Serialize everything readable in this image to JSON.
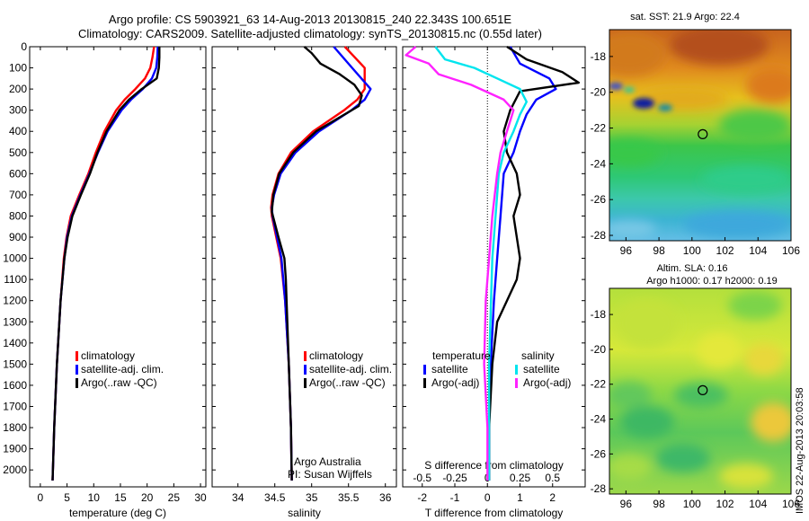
{
  "title_line1": "Argo profile: CS 5903921_63 14-Aug-2013 20130815_240 22.343S 100.651E",
  "title_line2": "Climatology: CARS2009. Satellite-adjusted climatology: synTS_20130815.nc (0.55d later)",
  "credit_org": "Argo Australia",
  "credit_pi": "PI: Susan Wijffels",
  "timestamp_label": "IMOS 22-Aug-2013 20:03:58",
  "colors": {
    "climatology": "#ff0000",
    "satellite": "#0000ff",
    "argo": "#000000",
    "salinity_satellite": "#00e5ee",
    "salinity_argo": "#ff22ff"
  },
  "chart_data": [
    {
      "type": "line",
      "xlabel": "temperature (deg C)",
      "ylabel": "",
      "xlim": [
        -2,
        31
      ],
      "ylim": [
        2080,
        0
      ],
      "xticks": [
        0,
        5,
        10,
        15,
        20,
        25,
        30
      ],
      "yticks": [
        0,
        100,
        200,
        300,
        400,
        500,
        600,
        700,
        800,
        900,
        1000,
        1100,
        1200,
        1300,
        1400,
        1500,
        1600,
        1700,
        1800,
        1900,
        2000
      ],
      "legend": [
        "climatology",
        "satellite-adj. clim.",
        "Argo(..raw -QC)"
      ],
      "legend_position": "lower-middle",
      "series": [
        {
          "name": "climatology",
          "color_key": "climatology",
          "depth": [
            0,
            50,
            100,
            150,
            200,
            250,
            300,
            400,
            500,
            600,
            700,
            800,
            900,
            1000,
            1200,
            1500,
            1800,
            2050
          ],
          "values": [
            21.3,
            21.0,
            20.6,
            19.6,
            17.8,
            15.8,
            14.2,
            12.0,
            10.4,
            9.0,
            7.3,
            5.7,
            4.9,
            4.4,
            3.8,
            3.1,
            2.6,
            2.3
          ]
        },
        {
          "name": "satellite-adj. clim.",
          "color_key": "satellite",
          "depth": [
            0,
            50,
            100,
            150,
            200,
            250,
            300,
            400,
            500,
            600,
            700,
            800,
            900,
            1000,
            1200,
            1500,
            1800,
            2050
          ],
          "values": [
            22.0,
            21.9,
            21.7,
            20.9,
            19.2,
            17.0,
            15.2,
            12.6,
            10.8,
            9.2,
            7.5,
            5.9,
            5.0,
            4.5,
            3.8,
            3.1,
            2.6,
            2.3
          ]
        },
        {
          "name": "Argo(..raw -QC)",
          "color_key": "argo",
          "depth": [
            0,
            50,
            100,
            150,
            200,
            250,
            300,
            400,
            500,
            600,
            700,
            800,
            900,
            1000,
            1200,
            1500,
            1800,
            2050
          ],
          "values": [
            22.3,
            22.3,
            22.2,
            21.8,
            19.0,
            16.6,
            14.8,
            12.4,
            10.7,
            9.3,
            7.6,
            6.0,
            5.1,
            4.5,
            3.8,
            3.1,
            2.6,
            2.3
          ]
        }
      ]
    },
    {
      "type": "line",
      "xlabel": "salinity",
      "ylabel": "",
      "xlim": [
        33.65,
        36.15
      ],
      "ylim": [
        2080,
        0
      ],
      "xticks": [
        34,
        34.5,
        35,
        35.5,
        36
      ],
      "legend": [
        "climatology",
        "satellite-adj. clim.",
        "Argo(..raw -QC)"
      ],
      "legend_position": "lower-middle",
      "series": [
        {
          "name": "climatology",
          "color_key": "climatology",
          "depth": [
            0,
            100,
            200,
            250,
            300,
            400,
            500,
            600,
            700,
            760,
            800,
            900,
            1000,
            1200,
            1500,
            1800,
            2050
          ],
          "values": [
            35.45,
            35.72,
            35.72,
            35.62,
            35.44,
            35.02,
            34.72,
            34.55,
            34.47,
            34.45,
            34.46,
            34.52,
            34.58,
            34.64,
            34.69,
            34.72,
            34.73
          ]
        },
        {
          "name": "satellite-adj. clim.",
          "color_key": "satellite",
          "depth": [
            0,
            100,
            200,
            250,
            300,
            400,
            500,
            600,
            700,
            760,
            800,
            900,
            1000,
            1200,
            1500,
            1800,
            2050
          ],
          "values": [
            35.3,
            35.55,
            35.8,
            35.72,
            35.54,
            35.1,
            34.78,
            34.58,
            34.49,
            34.46,
            34.47,
            34.53,
            34.59,
            34.64,
            34.69,
            34.72,
            34.73
          ]
        },
        {
          "name": "Argo(..raw -QC)",
          "color_key": "argo",
          "depth": [
            0,
            30,
            80,
            130,
            180,
            230,
            280,
            400,
            500,
            600,
            700,
            780,
            900,
            1000,
            1100,
            1200,
            1500,
            1800,
            2050
          ],
          "values": [
            34.9,
            35.0,
            35.12,
            35.38,
            35.58,
            35.68,
            35.64,
            35.06,
            34.75,
            34.56,
            34.48,
            34.46,
            34.55,
            34.63,
            34.65,
            34.66,
            34.69,
            34.72,
            34.73
          ]
        }
      ]
    },
    {
      "type": "line",
      "xlabel": "T difference from climatology",
      "xlabel_top": "S difference from climatology",
      "ylabel": "",
      "xlim": [
        -2.6,
        3.0
      ],
      "ylim": [
        2080,
        0
      ],
      "xticks": [
        -2,
        -1,
        0,
        1,
        2
      ],
      "xticks_top": [
        "-0.5",
        "-0.25",
        "0",
        "0.25",
        "0.5"
      ],
      "xticks_top_pos": [
        -2,
        -1,
        0,
        1,
        2
      ],
      "legend_title_left": "temperature",
      "legend_title_right": "salinity",
      "legend": [
        "satellite",
        "Argo(-adj)",
        "satellite",
        "Argo(-adj)"
      ],
      "legend_position": "lower-middle",
      "series": [
        {
          "name": "satellite",
          "group": "temperature",
          "color_key": "satellite",
          "depth": [
            0,
            80,
            150,
            200,
            250,
            320,
            400,
            500,
            600,
            800,
            1000,
            1200,
            1500,
            1800,
            2050
          ],
          "values": [
            0.7,
            1.0,
            1.9,
            2.1,
            1.5,
            1.2,
            1.0,
            0.8,
            0.5,
            0.4,
            0.3,
            0.2,
            0.1,
            0.05,
            0.05
          ]
        },
        {
          "name": "Argo(-adj)",
          "group": "temperature",
          "color_key": "argo",
          "depth": [
            0,
            60,
            120,
            170,
            210,
            300,
            400,
            500,
            600,
            700,
            800,
            900,
            1000,
            1100,
            1200,
            1300,
            1500,
            1800,
            2050
          ],
          "values": [
            0.6,
            1.2,
            2.3,
            2.8,
            1.0,
            0.7,
            0.5,
            0.6,
            0.9,
            1.0,
            0.8,
            0.9,
            1.0,
            0.9,
            0.6,
            0.3,
            0.15,
            0.05,
            0.05
          ]
        },
        {
          "name": "satellite",
          "group": "salinity",
          "color_key": "salinity_satellite",
          "depth": [
            0,
            60,
            100,
            150,
            200,
            260,
            320,
            400,
            500,
            600,
            800,
            1000,
            1500,
            2050
          ],
          "values": [
            -1.6,
            -1.3,
            -0.4,
            0.3,
            1.0,
            1.2,
            1.0,
            0.8,
            0.5,
            0.35,
            0.25,
            0.15,
            0.05,
            0.05
          ]
        },
        {
          "name": "Argo(-adj)",
          "group": "salinity",
          "color_key": "salinity_argo",
          "depth": [
            0,
            40,
            80,
            130,
            180,
            250,
            300,
            400,
            500,
            600,
            800,
            1000,
            1200,
            1500,
            1800,
            2050
          ],
          "values": [
            -2.2,
            -2.5,
            -1.8,
            -1.5,
            -0.5,
            0.5,
            0.8,
            0.6,
            0.4,
            0.3,
            0.15,
            0.05,
            -0.05,
            -0.1,
            0.0,
            0.0
          ]
        }
      ]
    },
    {
      "type": "heatmap",
      "title": "sat. SST: 21.9 Argo: 22.4",
      "xlim": [
        95,
        106
      ],
      "ylim": [
        -28.3,
        -16.5
      ],
      "xticks": [
        96,
        98,
        100,
        102,
        104,
        106
      ],
      "yticks": [
        -18,
        -20,
        -22,
        -24,
        -26,
        -28
      ],
      "marker": {
        "lon": 100.651,
        "lat": -22.343
      }
    },
    {
      "type": "heatmap",
      "title_line1": "Altim. SLA: 0.16",
      "title_line2": "Argo h1000: 0.17 h2000: 0.19",
      "xlim": [
        95,
        106
      ],
      "ylim": [
        -28.3,
        -16.5
      ],
      "xticks": [
        96,
        98,
        100,
        102,
        104,
        106
      ],
      "yticks": [
        -18,
        -20,
        -22,
        -24,
        -26,
        -28
      ],
      "marker": {
        "lon": 100.651,
        "lat": -22.343
      }
    }
  ]
}
